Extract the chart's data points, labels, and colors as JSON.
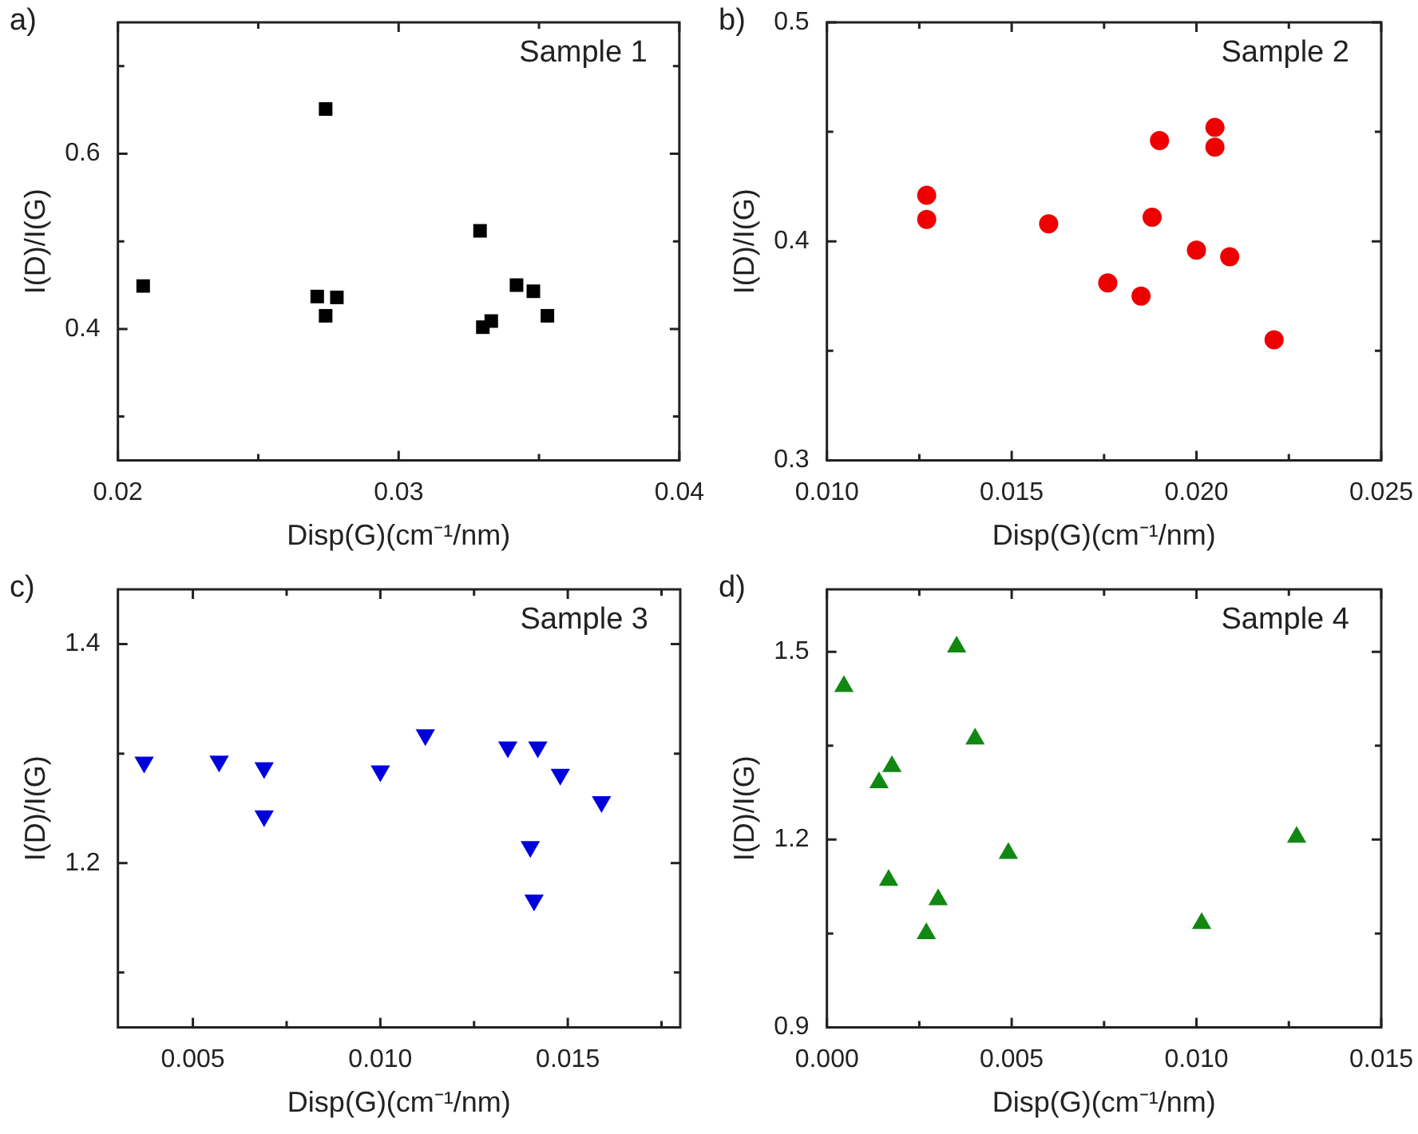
{
  "chart_data": [
    {
      "type": "scatter",
      "title": "Sample 1",
      "annotations": [
        "a)"
      ],
      "xlabel": "Disp(G)(cm⁻¹/nm)",
      "ylabel": "I(D)/I(G)",
      "marker": "square",
      "x": [
        0.0209,
        0.0274,
        0.0271,
        0.0278,
        0.0274,
        0.0329,
        0.033,
        0.0333,
        0.0342,
        0.0348,
        0.0353
      ],
      "series": [
        {
          "color": "#000000",
          "values": [
            0.449,
            0.651,
            0.437,
            0.436,
            0.415,
            0.512,
            0.402,
            0.409,
            0.45,
            0.443,
            0.415
          ]
        }
      ],
      "xlim": [
        0.02,
        0.04
      ],
      "xticks": [
        0.02,
        {
          "value": 0.025,
          "label": null
        },
        0.03,
        {
          "value": 0.035,
          "label": null
        },
        0.04
      ],
      "ylim": [
        0.25,
        0.75
      ],
      "yticks": [
        {
          "value": 0.3,
          "label": null
        },
        0.4,
        {
          "value": 0.5,
          "label": null
        },
        0.6,
        {
          "value": 0.7,
          "label": null
        }
      ]
    },
    {
      "type": "scatter",
      "title": "Sample 2",
      "annotations": [
        "b)"
      ],
      "xlabel": "Disp(G)(cm⁻¹/nm)",
      "ylabel": "I(D)/I(G)",
      "marker": "circle",
      "x": [
        0.0127,
        0.0127,
        0.016,
        0.0176,
        0.0185,
        0.0188,
        0.019,
        0.02,
        0.0205,
        0.0205,
        0.0209,
        0.0221
      ],
      "series": [
        {
          "color": "#ee0000",
          "values": [
            0.421,
            0.41,
            0.408,
            0.381,
            0.375,
            0.411,
            0.446,
            0.396,
            0.452,
            0.443,
            0.393,
            0.355
          ]
        }
      ],
      "xlim": [
        0.01,
        0.025
      ],
      "xticks": [
        {
          "value": 0.01,
          "label": "0.010"
        },
        {
          "value": 0.0125,
          "label": null
        },
        0.015,
        {
          "value": 0.0175,
          "label": null
        },
        {
          "value": 0.02,
          "label": "0.020"
        },
        {
          "value": 0.0225,
          "label": null
        },
        0.025
      ],
      "ylim": [
        0.3,
        0.5
      ],
      "yticks": [
        0.3,
        {
          "value": 0.35,
          "label": null
        },
        0.4,
        {
          "value": 0.45,
          "label": null
        },
        0.5
      ]
    },
    {
      "type": "scatter",
      "title": "Sample 3",
      "annotations": [
        "c)"
      ],
      "xlabel": "Disp(G)(cm⁻¹/nm)",
      "ylabel": "I(D)/I(G)",
      "marker": "triangle-down",
      "x": [
        0.0037,
        0.0057,
        0.0069,
        0.0069,
        0.01,
        0.0112,
        0.0134,
        0.0142,
        0.0148,
        0.0159,
        0.014,
        0.0141
      ],
      "series": [
        {
          "color": "#0000dd",
          "values": [
            1.292,
            1.293,
            1.287,
            1.243,
            1.284,
            1.317,
            1.306,
            1.306,
            1.281,
            1.256,
            1.215,
            1.166
          ]
        }
      ],
      "xlim": [
        0.003,
        0.018
      ],
      "xticks": [
        0.005,
        {
          "value": 0.0075,
          "label": null
        },
        {
          "value": 0.01,
          "label": "0.010"
        },
        {
          "value": 0.0125,
          "label": null
        },
        0.015,
        {
          "value": 0.0175,
          "label": null
        }
      ],
      "ylim": [
        1.05,
        1.45
      ],
      "yticks": [
        {
          "value": 1.1,
          "label": null
        },
        1.2,
        {
          "value": 1.3,
          "label": null
        },
        1.4
      ]
    },
    {
      "type": "scatter",
      "title": "Sample 4",
      "annotations": [
        "d)"
      ],
      "xlabel": "Disp(G)(cm⁻¹/nm)",
      "ylabel": "I(D)/I(G)",
      "marker": "triangle",
      "x": [
        0.00046,
        0.00351,
        0.00401,
        0.00176,
        0.00141,
        0.00491,
        0.01271,
        0.00167,
        0.00301,
        0.00269,
        0.01014
      ],
      "series": [
        {
          "color": "#118811",
          "values": [
            1.445,
            1.508,
            1.361,
            1.317,
            1.291,
            1.178,
            1.204,
            1.135,
            1.104,
            1.05,
            1.066
          ]
        }
      ],
      "xlim": [
        0,
        0.015
      ],
      "xticks": [
        {
          "value": 0,
          "label": "0.000"
        },
        {
          "value": 0.0025,
          "label": null
        },
        0.005,
        {
          "value": 0.0075,
          "label": null
        },
        {
          "value": 0.01,
          "label": "0.010"
        },
        {
          "value": 0.0125,
          "label": null
        },
        0.015
      ],
      "ylim": [
        0.9,
        1.6
      ],
      "yticks": [
        0.9,
        {
          "value": 1.05,
          "label": null
        },
        1.2,
        {
          "value": 1.35,
          "label": null
        },
        1.5
      ]
    }
  ]
}
